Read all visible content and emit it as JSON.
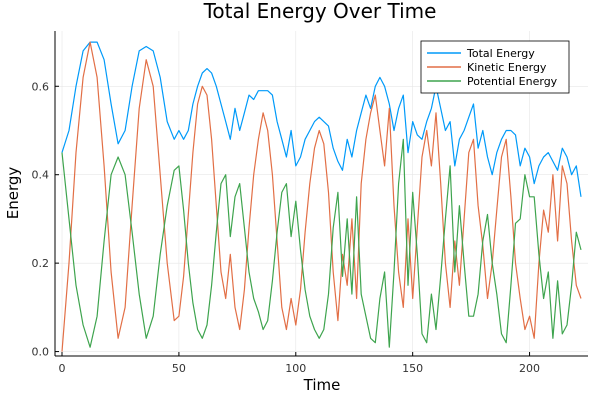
{
  "chart_data": {
    "type": "line",
    "title": "Total Energy Over Time",
    "xlabel": "Time",
    "ylabel": "Energy",
    "xlim": [
      -3,
      225
    ],
    "ylim": [
      -0.01,
      0.725
    ],
    "xticks": [
      0,
      50,
      100,
      150,
      200
    ],
    "yticks": [
      0.0,
      0.2,
      0.4,
      0.6
    ],
    "ytick_labels": [
      "0.0",
      "0.2",
      "0.4",
      "0.6"
    ],
    "grid": true,
    "legend_position": "top-right",
    "series": [
      {
        "name": "Total Energy",
        "color": "#009af9",
        "x": [
          0,
          3,
          6,
          9,
          12,
          15,
          18,
          21,
          24,
          27,
          30,
          33,
          36,
          39,
          42,
          45,
          48,
          50,
          52,
          54,
          56,
          58,
          60,
          62,
          64,
          66,
          68,
          70,
          72,
          74,
          76,
          78,
          80,
          82,
          84,
          86,
          88,
          90,
          92,
          94,
          96,
          98,
          100,
          102,
          104,
          106,
          108,
          110,
          112,
          114,
          116,
          118,
          120,
          122,
          124,
          126,
          128,
          130,
          132,
          134,
          136,
          138,
          140,
          142,
          144,
          146,
          148,
          150,
          152,
          154,
          156,
          158,
          160,
          162,
          164,
          166,
          168,
          170,
          172,
          174,
          176,
          178,
          180,
          182,
          184,
          186,
          188,
          190,
          192,
          194,
          196,
          198,
          200,
          202,
          204,
          206,
          208,
          210,
          212,
          214,
          216,
          218,
          220,
          222
        ],
        "values": [
          0.45,
          0.5,
          0.6,
          0.68,
          0.7,
          0.7,
          0.66,
          0.56,
          0.47,
          0.5,
          0.6,
          0.68,
          0.69,
          0.68,
          0.62,
          0.52,
          0.48,
          0.5,
          0.48,
          0.5,
          0.56,
          0.6,
          0.63,
          0.64,
          0.63,
          0.6,
          0.56,
          0.52,
          0.48,
          0.55,
          0.5,
          0.54,
          0.58,
          0.57,
          0.59,
          0.59,
          0.59,
          0.58,
          0.52,
          0.48,
          0.44,
          0.5,
          0.42,
          0.44,
          0.48,
          0.5,
          0.52,
          0.53,
          0.52,
          0.51,
          0.46,
          0.43,
          0.41,
          0.48,
          0.44,
          0.5,
          0.54,
          0.58,
          0.55,
          0.6,
          0.62,
          0.6,
          0.56,
          0.5,
          0.55,
          0.58,
          0.45,
          0.52,
          0.49,
          0.48,
          0.52,
          0.55,
          0.6,
          0.55,
          0.5,
          0.52,
          0.42,
          0.48,
          0.5,
          0.53,
          0.56,
          0.46,
          0.5,
          0.44,
          0.4,
          0.45,
          0.48,
          0.5,
          0.5,
          0.49,
          0.42,
          0.46,
          0.44,
          0.38,
          0.42,
          0.44,
          0.45,
          0.43,
          0.41,
          0.46,
          0.44,
          0.4,
          0.42,
          0.35
        ]
      },
      {
        "name": "Kinetic Energy",
        "color": "#e26f46",
        "x": [
          0,
          3,
          6,
          9,
          12,
          15,
          18,
          21,
          24,
          27,
          30,
          33,
          36,
          39,
          42,
          45,
          48,
          50,
          52,
          54,
          56,
          58,
          60,
          62,
          64,
          66,
          68,
          70,
          72,
          74,
          76,
          78,
          80,
          82,
          84,
          86,
          88,
          90,
          92,
          94,
          96,
          98,
          100,
          102,
          104,
          106,
          108,
          110,
          112,
          114,
          116,
          118,
          120,
          122,
          124,
          126,
          128,
          130,
          132,
          134,
          136,
          138,
          140,
          142,
          144,
          146,
          148,
          150,
          152,
          154,
          156,
          158,
          160,
          162,
          164,
          166,
          168,
          170,
          172,
          174,
          176,
          178,
          180,
          182,
          184,
          186,
          188,
          190,
          192,
          194,
          196,
          198,
          200,
          202,
          204,
          206,
          208,
          210,
          212,
          214,
          216,
          218,
          220,
          222
        ],
        "values": [
          0.0,
          0.2,
          0.45,
          0.62,
          0.7,
          0.62,
          0.42,
          0.18,
          0.03,
          0.1,
          0.33,
          0.55,
          0.66,
          0.6,
          0.4,
          0.2,
          0.07,
          0.08,
          0.17,
          0.31,
          0.45,
          0.56,
          0.6,
          0.58,
          0.48,
          0.33,
          0.18,
          0.12,
          0.22,
          0.1,
          0.05,
          0.14,
          0.28,
          0.4,
          0.48,
          0.54,
          0.5,
          0.4,
          0.25,
          0.1,
          0.05,
          0.12,
          0.06,
          0.14,
          0.27,
          0.38,
          0.46,
          0.5,
          0.47,
          0.36,
          0.18,
          0.07,
          0.22,
          0.15,
          0.3,
          0.12,
          0.38,
          0.48,
          0.54,
          0.58,
          0.5,
          0.42,
          0.55,
          0.33,
          0.18,
          0.1,
          0.3,
          0.12,
          0.28,
          0.44,
          0.5,
          0.42,
          0.54,
          0.38,
          0.2,
          0.1,
          0.25,
          0.15,
          0.3,
          0.45,
          0.48,
          0.33,
          0.24,
          0.12,
          0.2,
          0.32,
          0.44,
          0.48,
          0.35,
          0.2,
          0.12,
          0.05,
          0.08,
          0.03,
          0.2,
          0.32,
          0.27,
          0.4,
          0.25,
          0.42,
          0.38,
          0.25,
          0.15,
          0.12
        ]
      },
      {
        "name": "Potential Energy",
        "color": "#3ea44e",
        "x": [
          0,
          3,
          6,
          9,
          12,
          15,
          18,
          21,
          24,
          27,
          30,
          33,
          36,
          39,
          42,
          45,
          48,
          50,
          52,
          54,
          56,
          58,
          60,
          62,
          64,
          66,
          68,
          70,
          72,
          74,
          76,
          78,
          80,
          82,
          84,
          86,
          88,
          90,
          92,
          94,
          96,
          98,
          100,
          102,
          104,
          106,
          108,
          110,
          112,
          114,
          116,
          118,
          120,
          122,
          124,
          126,
          128,
          130,
          132,
          134,
          136,
          138,
          140,
          142,
          144,
          146,
          148,
          150,
          152,
          154,
          156,
          158,
          160,
          162,
          164,
          166,
          168,
          170,
          172,
          174,
          176,
          178,
          180,
          182,
          184,
          186,
          188,
          190,
          192,
          194,
          196,
          198,
          200,
          202,
          204,
          206,
          208,
          210,
          212,
          214,
          216,
          218,
          220,
          222
        ],
        "values": [
          0.45,
          0.3,
          0.15,
          0.06,
          0.01,
          0.08,
          0.25,
          0.4,
          0.44,
          0.4,
          0.27,
          0.13,
          0.03,
          0.08,
          0.22,
          0.33,
          0.41,
          0.42,
          0.32,
          0.2,
          0.11,
          0.05,
          0.03,
          0.06,
          0.15,
          0.27,
          0.38,
          0.4,
          0.26,
          0.35,
          0.38,
          0.28,
          0.18,
          0.12,
          0.09,
          0.05,
          0.07,
          0.16,
          0.27,
          0.36,
          0.38,
          0.26,
          0.34,
          0.23,
          0.14,
          0.08,
          0.05,
          0.03,
          0.05,
          0.13,
          0.28,
          0.36,
          0.17,
          0.3,
          0.13,
          0.35,
          0.13,
          0.08,
          0.03,
          0.02,
          0.12,
          0.18,
          0.01,
          0.18,
          0.38,
          0.48,
          0.15,
          0.36,
          0.22,
          0.04,
          0.02,
          0.13,
          0.05,
          0.17,
          0.3,
          0.42,
          0.18,
          0.33,
          0.2,
          0.08,
          0.08,
          0.13,
          0.25,
          0.31,
          0.2,
          0.13,
          0.04,
          0.02,
          0.15,
          0.29,
          0.3,
          0.4,
          0.35,
          0.35,
          0.22,
          0.12,
          0.18,
          0.03,
          0.16,
          0.04,
          0.06,
          0.15,
          0.27,
          0.23
        ]
      }
    ]
  }
}
